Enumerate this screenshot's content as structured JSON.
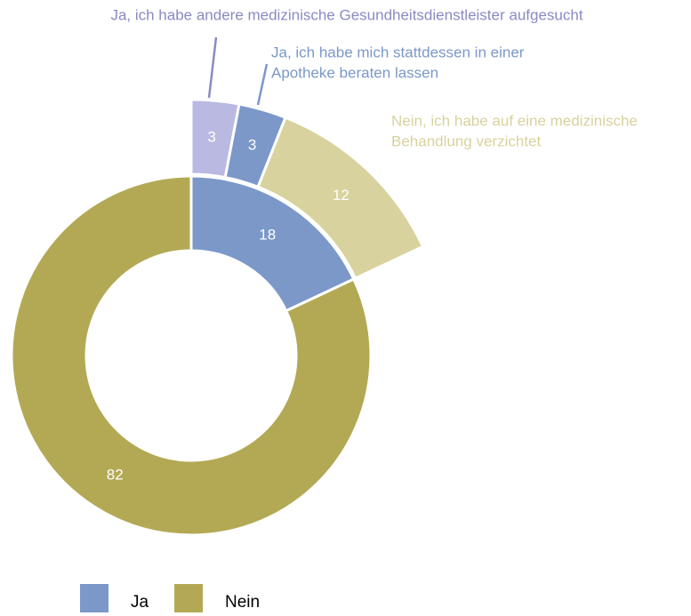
{
  "chart_data": {
    "type": "donut",
    "inner": {
      "categories": [
        "Ja",
        "Nein"
      ],
      "values": [
        18,
        82
      ],
      "colors": [
        "#7b98c9",
        "#b3a955"
      ]
    },
    "outer": {
      "labels": [
        [
          "Ja, ich habe andere medizinische Gesundheitsdienstleister aufgesucht"
        ],
        [
          "Ja, ich habe mich stattdessen in einer",
          "Apotheke beraten lassen"
        ],
        [
          "Nein, ich habe auf eine medizinische",
          "Behandlung verzichtet"
        ]
      ],
      "values": [
        3,
        3,
        12
      ],
      "colors": [
        "#b9b9e1",
        "#7b98c9",
        "#d8d29e"
      ],
      "label_colors": [
        "#8a8ac4",
        "#7b98c9",
        "#d8d29e"
      ]
    },
    "legend": true
  }
}
